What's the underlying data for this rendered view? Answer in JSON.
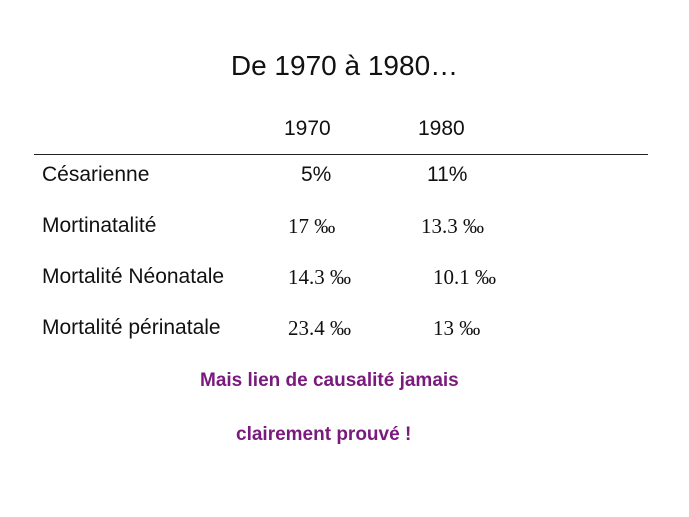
{
  "slide": {
    "title": "De 1970 à 1980…",
    "columns": [
      "1970",
      "1980"
    ],
    "rows": [
      {
        "label": "Césarienne",
        "v1970": "5%",
        "v1980": "11%"
      },
      {
        "label": "Mortinatalité",
        "v1970": "17 ‰",
        "v1980": "13.3 ‰"
      },
      {
        "label": "Mortalité Néonatale",
        "v1970": "14.3 ‰",
        "v1980": "10.1 ‰"
      },
      {
        "label": "Mortalité périnatale",
        "v1970": "23.4 ‰",
        "v1980": "13 ‰"
      }
    ],
    "note_line1": "Mais lien de causalité jamais",
    "note_line2": "clairement prouvé !",
    "colors": {
      "text": "#111111",
      "note": "#7a1a7e",
      "rule": "#222222"
    }
  }
}
